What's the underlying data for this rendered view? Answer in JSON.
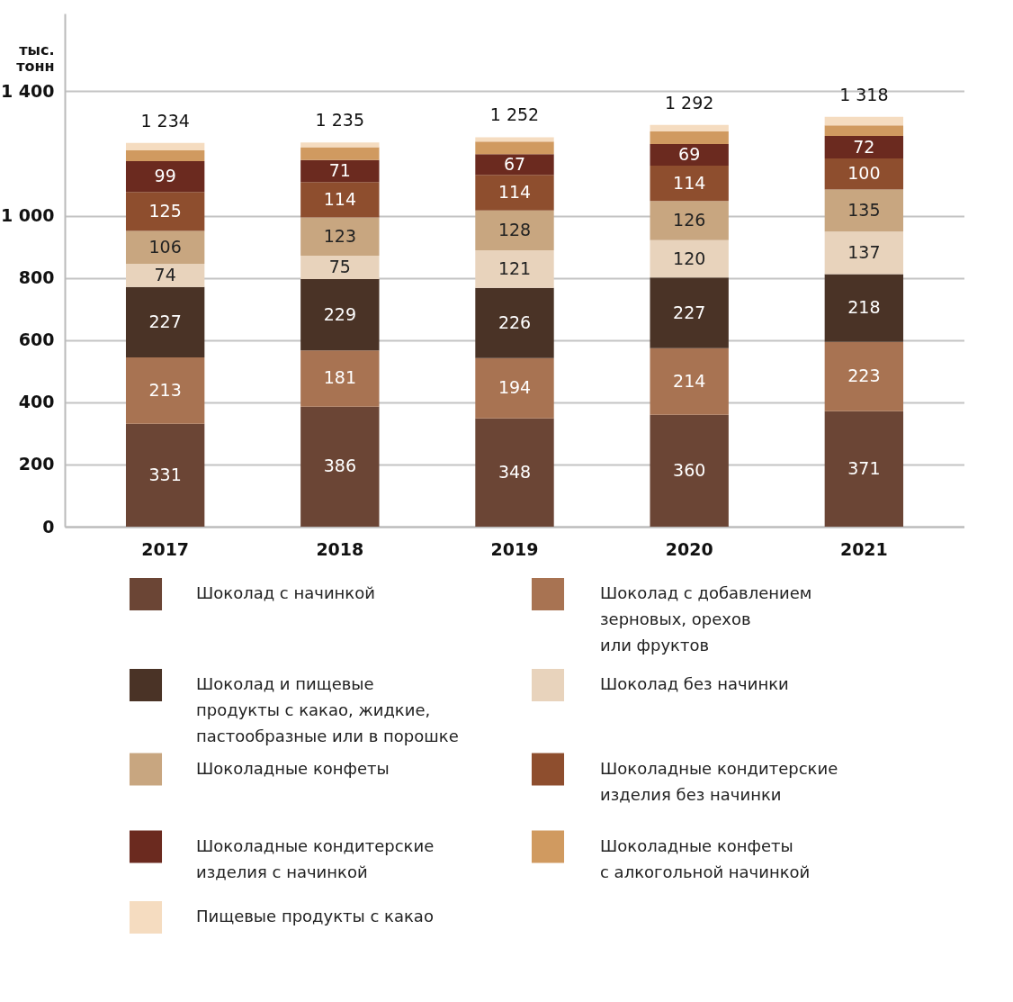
{
  "chart_data": {
    "type": "bar",
    "stacked": true,
    "ylabel": "тыс. тонн",
    "categories": [
      "2017",
      "2018",
      "2019",
      "2020",
      "2021"
    ],
    "ylim": [
      0,
      1650
    ],
    "yticks": [
      0,
      200,
      400,
      600,
      800,
      {
        "value": 1000,
        "label": "1 000"
      },
      {
        "value": 1400,
        "label": "1 400"
      }
    ],
    "grid": "y",
    "legend": "bottom",
    "totals": [
      "1 234",
      "1 235",
      "1 252",
      "1 292",
      "1 318"
    ],
    "series": [
      {
        "name": "Шоколад с начинкой",
        "color": "#6b4535",
        "values": [
          331,
          386,
          348,
          360,
          371
        ],
        "value_labels": [
          "331",
          "386",
          "348",
          "360",
          "371"
        ]
      },
      {
        "name": "Шоколад с добавлением\nзерновых, орехов\nили фруктов",
        "color": "#a87352",
        "values": [
          213,
          181,
          194,
          214,
          223
        ],
        "value_labels": [
          "213",
          "181",
          "194",
          "214",
          "223"
        ]
      },
      {
        "name": "Шоколад и пищевые\nпродукты с какао, жидкие,\nпастообразные или в порошке",
        "color": "#4a3326",
        "values": [
          227,
          229,
          226,
          227,
          218
        ],
        "value_labels": [
          "227",
          "229",
          "226",
          "227",
          "218"
        ]
      },
      {
        "name": "Шоколад без начинки",
        "color": "#e8d3bc",
        "values": [
          74,
          75,
          121,
          120,
          137
        ],
        "value_labels": [
          "74",
          "75",
          "121",
          "120",
          "137"
        ]
      },
      {
        "name": "Шоколадные конфеты",
        "color": "#c8a680",
        "values": [
          106,
          123,
          128,
          126,
          135
        ],
        "value_labels": [
          "106",
          "123",
          "128",
          "126",
          "135"
        ]
      },
      {
        "name": "Шоколадные кондитерские\nизделия без начинки",
        "color": "#8e4e2e",
        "values": [
          125,
          114,
          114,
          114,
          100
        ],
        "value_labels": [
          "125",
          "114",
          "114",
          "114",
          "100"
        ]
      },
      {
        "name": "Шоколадные кондитерские\nизделия с начинкой",
        "color": "#6b2a1f",
        "values": [
          99,
          71,
          67,
          69,
          72
        ],
        "value_labels": [
          "99",
          "71",
          "67",
          "69",
          "72"
        ]
      },
      {
        "name": "Шоколадные конфеты\nс алкогольной начинкой",
        "color": "#d09a60",
        "values": [
          35,
          41,
          40,
          41,
          34
        ]
      },
      {
        "name": "Пищевые продукты с какао",
        "color": "#f5dcc0",
        "values": [
          24,
          15,
          14,
          21,
          28
        ]
      }
    ]
  }
}
